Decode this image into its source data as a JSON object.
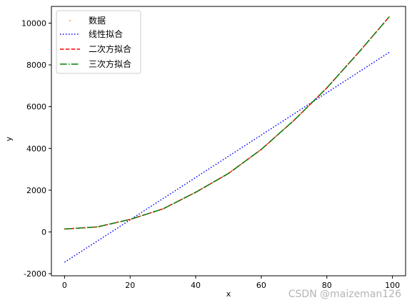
{
  "chart_data": {
    "type": "line",
    "title": "",
    "xlabel": "x",
    "ylabel": "y",
    "xlim": [
      -4,
      104
    ],
    "ylim": [
      -2100,
      10800
    ],
    "xticks": [
      0,
      20,
      40,
      60,
      80,
      100
    ],
    "yticks": [
      -2000,
      0,
      2000,
      4000,
      6000,
      8000,
      10000
    ],
    "grid": false,
    "legend_position": "top-left",
    "series": [
      {
        "name": "数据",
        "kind": "points",
        "color": "#ff7f0e",
        "x": [
          0,
          10,
          20,
          30,
          40,
          50,
          60,
          70,
          80,
          90,
          99
        ],
        "y": [
          140,
          240,
          600,
          1100,
          1900,
          2800,
          3950,
          5350,
          6900,
          8650,
          10300
        ]
      },
      {
        "name": "线性拟合",
        "kind": "dotted",
        "color": "#0000ff",
        "x": [
          0,
          99
        ],
        "y": [
          -1450,
          8600
        ]
      },
      {
        "name": "二次方拟合",
        "kind": "dashed",
        "color": "#ff0000",
        "x": [
          0,
          10,
          20,
          30,
          40,
          50,
          60,
          70,
          80,
          90,
          99
        ],
        "y": [
          140,
          240,
          600,
          1100,
          1900,
          2800,
          3950,
          5350,
          6900,
          8650,
          10300
        ]
      },
      {
        "name": "三次方拟合",
        "kind": "dashdot",
        "color": "#008000",
        "x": [
          0,
          10,
          20,
          30,
          40,
          50,
          60,
          70,
          80,
          90,
          99
        ],
        "y": [
          140,
          240,
          600,
          1100,
          1900,
          2800,
          3950,
          5350,
          6900,
          8650,
          10300
        ]
      }
    ]
  },
  "watermark": "CSDN @maizeman126"
}
